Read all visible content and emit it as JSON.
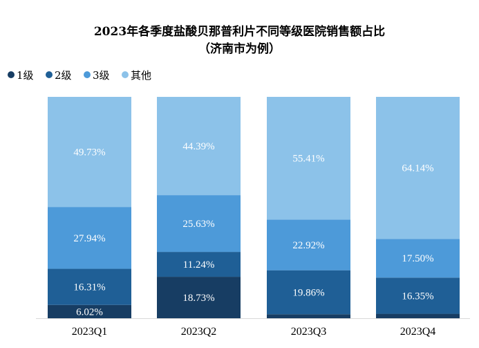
{
  "title_line1": "2023年各季度盐酸贝那普利片不同等级医院销售额占比",
  "title_line2": "（济南市为例）",
  "chart_data": {
    "type": "bar",
    "stacked": true,
    "title": "2023年各季度盐酸贝那普利片不同等级医院销售额占比（济南市为例）",
    "categories": [
      "2023Q1",
      "2023Q2",
      "2023Q3",
      "2023Q4"
    ],
    "ylim": [
      0,
      100
    ],
    "unit": "%",
    "legend_position": "top-left",
    "grid": false,
    "series": [
      {
        "name": "1级",
        "color": "#173d63",
        "values": [
          6.02,
          18.73,
          1.81,
          2.01
        ],
        "labels": [
          "6.02%",
          "18.73%",
          "",
          ""
        ]
      },
      {
        "name": "2级",
        "color": "#1f5f96",
        "values": [
          16.31,
          11.24,
          19.86,
          16.35
        ],
        "labels": [
          "16.31%",
          "11.24%",
          "19.86%",
          "16.35%"
        ]
      },
      {
        "name": "3级",
        "color": "#4d9ad9",
        "values": [
          27.94,
          25.63,
          22.92,
          17.5
        ],
        "labels": [
          "27.94%",
          "25.63%",
          "22.92%",
          "17.50%"
        ]
      },
      {
        "name": "其他",
        "color": "#8cc2e9",
        "values": [
          49.73,
          44.39,
          55.41,
          64.14
        ],
        "labels": [
          "49.73%",
          "44.39%",
          "55.41%",
          "64.14%"
        ]
      }
    ]
  }
}
